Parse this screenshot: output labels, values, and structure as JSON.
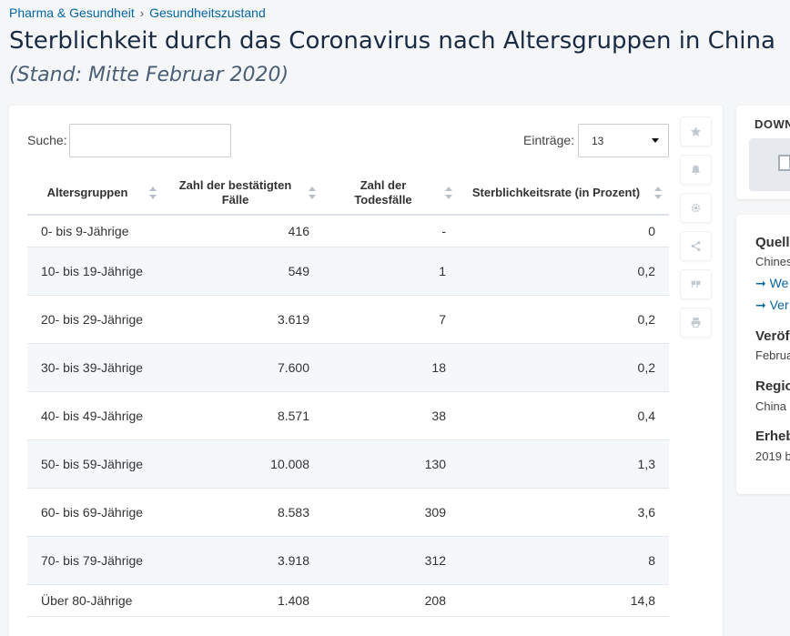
{
  "breadcrumb": {
    "items": [
      "Pharma & Gesundheit",
      "Gesundheitszustand"
    ],
    "separator": "›"
  },
  "title": "Sterblichkeit durch das Coronavirus nach Altersgruppen in China",
  "subtitle": "(Stand: Mitte Februar 2020)",
  "controls": {
    "search_label": "Suche:",
    "search_value": "",
    "entries_label": "Einträge:",
    "entries_value": "13"
  },
  "table": {
    "headers": [
      "Altersgruppen",
      "Zahl der bestätigten Fälle",
      "Zahl der Todesfälle",
      "Sterblichkeitsrate (in Prozent)"
    ],
    "rows": [
      [
        "0- bis 9-Jährige",
        "416",
        "-",
        "0"
      ],
      [
        "10- bis 19-Jährige",
        "549",
        "1",
        "0,2"
      ],
      [
        "20- bis 29-Jährige",
        "3.619",
        "7",
        "0,2"
      ],
      [
        "30- bis 39-Jährige",
        "7.600",
        "18",
        "0,2"
      ],
      [
        "40- bis 49-Jährige",
        "8.571",
        "38",
        "0,4"
      ],
      [
        "50- bis 59-Jährige",
        "10.008",
        "130",
        "1,3"
      ],
      [
        "60- bis 69-Jährige",
        "8.583",
        "309",
        "3,6"
      ],
      [
        "70- bis 79-Jährige",
        "3.918",
        "312",
        "8"
      ],
      [
        "Über 80-Jährige",
        "1.408",
        "208",
        "14,8"
      ]
    ]
  },
  "toolbar": {
    "icons": [
      "star-icon",
      "bell-icon",
      "gear-icon",
      "share-icon",
      "quote-icon",
      "print-icon"
    ]
  },
  "sidebar": {
    "download_label": "DOWN",
    "meta": {
      "source_title": "Quell",
      "source_value": "Chines",
      "link1": "➞ We",
      "link2": "➞ Ver",
      "published_title": "Veröf",
      "published_value": "Februa",
      "region_title": "Regio",
      "region_value": "China",
      "survey_title": "Erheb",
      "survey_value": "2019 b"
    }
  },
  "colors": {
    "link": "#0666a5",
    "title": "#1a2b44",
    "row_alt": "#f5f8fb"
  }
}
